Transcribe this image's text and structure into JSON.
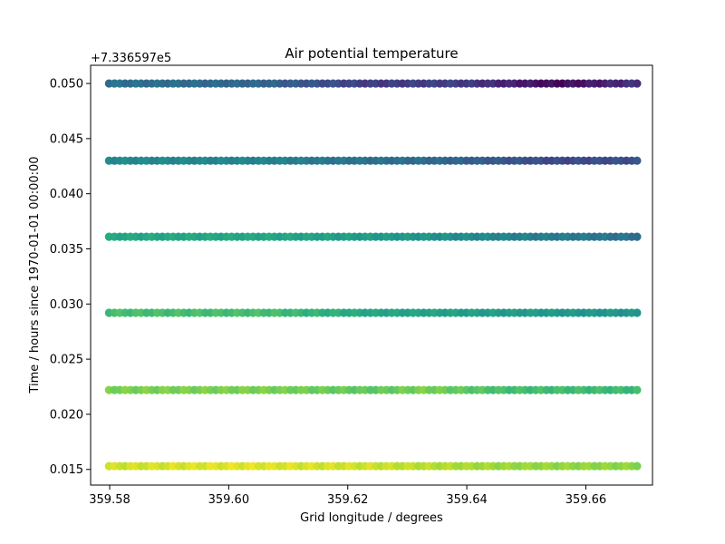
{
  "chart_data": {
    "type": "scatter",
    "title": "Air potential temperature",
    "xlabel": "Grid longitude / degrees",
    "ylabel": "Time / hours since 1970-01-01 00:00:00",
    "y_offset_label": "+7.336597e5",
    "xlim": [
      359.5768,
      359.6712
    ],
    "ylim": [
      0.01358,
      0.05165
    ],
    "x_ticks": [
      359.58,
      359.6,
      359.62,
      359.64,
      359.66
    ],
    "x_tick_labels": [
      "359.58",
      "359.60",
      "359.62",
      "359.64",
      "359.66"
    ],
    "y_ticks": [
      0.015,
      0.02,
      0.025,
      0.03,
      0.035,
      0.04,
      0.045,
      0.05
    ],
    "y_tick_labels": [
      "0.015",
      "0.020",
      "0.025",
      "0.030",
      "0.035",
      "0.040",
      "0.045",
      "0.050"
    ],
    "grid": false,
    "colormap": "viridis",
    "x_range": [
      359.5799,
      359.6686
    ],
    "points_per_row": 100,
    "series": [
      {
        "y": 0.0153,
        "color_stops": [
          [
            0.0,
            0.93
          ],
          [
            0.25,
            0.96
          ],
          [
            0.5,
            0.93
          ],
          [
            0.6,
            0.9
          ],
          [
            0.75,
            0.85
          ],
          [
            1.0,
            0.83
          ]
        ]
      },
      {
        "y": 0.0222,
        "color_stops": [
          [
            0.0,
            0.8
          ],
          [
            0.3,
            0.8
          ],
          [
            0.5,
            0.75
          ],
          [
            0.6,
            0.8
          ],
          [
            0.75,
            0.7
          ],
          [
            1.0,
            0.68
          ]
        ]
      },
      {
        "y": 0.0292,
        "color_stops": [
          [
            0.0,
            0.7
          ],
          [
            0.3,
            0.7
          ],
          [
            0.5,
            0.6
          ],
          [
            0.6,
            0.58
          ],
          [
            0.75,
            0.55
          ],
          [
            1.0,
            0.52
          ]
        ]
      },
      {
        "y": 0.0361,
        "color_stops": [
          [
            0.0,
            0.6
          ],
          [
            0.3,
            0.6
          ],
          [
            0.5,
            0.55
          ],
          [
            0.6,
            0.52
          ],
          [
            0.75,
            0.45
          ],
          [
            1.0,
            0.38
          ]
        ]
      },
      {
        "y": 0.043,
        "color_stops": [
          [
            0.0,
            0.48
          ],
          [
            0.3,
            0.45
          ],
          [
            0.5,
            0.38
          ],
          [
            0.6,
            0.36
          ],
          [
            0.85,
            0.22
          ],
          [
            1.0,
            0.25
          ]
        ]
      },
      {
        "y": 0.05,
        "color_stops": [
          [
            0.0,
            0.38
          ],
          [
            0.3,
            0.33
          ],
          [
            0.5,
            0.18
          ],
          [
            0.65,
            0.2
          ],
          [
            0.85,
            0.02
          ],
          [
            1.0,
            0.15
          ]
        ]
      }
    ]
  }
}
